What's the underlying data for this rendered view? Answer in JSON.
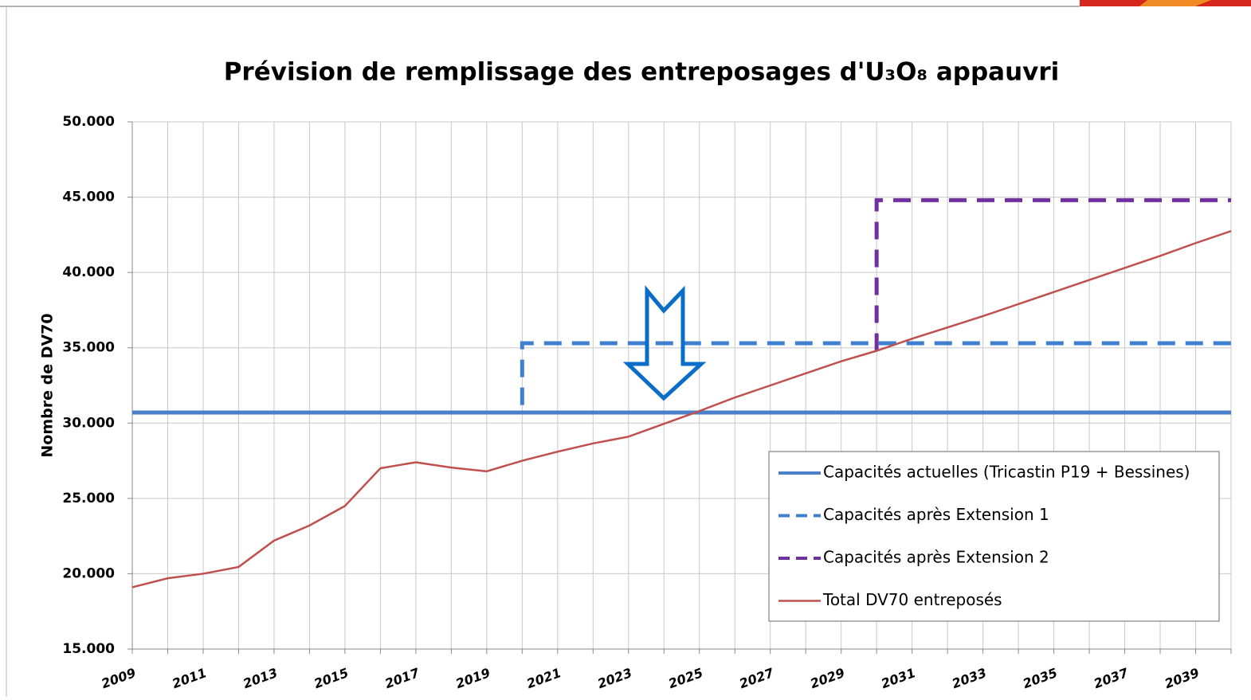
{
  "chart_data": {
    "type": "line",
    "title": "Prévision de remplissage des entreposages d'U₃O₈ appauvri",
    "ylabel": "Nombre de DV70",
    "xlim": [
      2009,
      2040
    ],
    "xticks": [
      2009,
      2011,
      2013,
      2015,
      2017,
      2019,
      2021,
      2023,
      2025,
      2027,
      2029,
      2031,
      2033,
      2035,
      2037,
      2039
    ],
    "xminorticks": [
      2010,
      2012,
      2014,
      2016,
      2018,
      2020,
      2022,
      2024,
      2026,
      2028,
      2030,
      2032,
      2034,
      2036,
      2038,
      2040
    ],
    "ylim": [
      15000,
      50000
    ],
    "yticks": [
      {
        "value": 15000,
        "label": "15.000"
      },
      {
        "value": 20000,
        "label": "20.000"
      },
      {
        "value": 25000,
        "label": "25.000"
      },
      {
        "value": 30000,
        "label": "30.000"
      },
      {
        "value": 35000,
        "label": "35.000"
      },
      {
        "value": 40000,
        "label": "40.000"
      },
      {
        "value": 45000,
        "label": "45.000"
      },
      {
        "value": 50000,
        "label": "50.000"
      }
    ],
    "grid": true,
    "legend": "lower right",
    "series": [
      {
        "name": "Capacités actuelles (Tricastin P19 + Bessines)",
        "color": "#4a7fc9",
        "dash": false,
        "x": [
          2009,
          2040
        ],
        "values": [
          30700,
          30700
        ]
      },
      {
        "name": "Capacités après Extension 1",
        "color": "#3f7fcf",
        "dash": true,
        "x": [
          2020,
          2020,
          2040
        ],
        "values": [
          31200,
          35300,
          35300
        ]
      },
      {
        "name": "Capacités après Extension 2",
        "color": "#7030a0",
        "dash": true,
        "x": [
          2030,
          2030,
          2040
        ],
        "values": [
          34800,
          44800,
          44800
        ]
      },
      {
        "name": "Total DV70 entreposés",
        "color": "#c0504d",
        "dash": false,
        "x": [
          2009,
          2010,
          2011,
          2012,
          2013,
          2014,
          2015,
          2016,
          2017,
          2018,
          2019,
          2020,
          2021,
          2022,
          2023,
          2024,
          2025,
          2026,
          2027,
          2028,
          2029,
          2030,
          2031,
          2032,
          2033,
          2034,
          2035,
          2036,
          2037,
          2038,
          2039,
          2040
        ],
        "values": [
          19100,
          19700,
          20000,
          20450,
          22200,
          23200,
          24500,
          27000,
          27400,
          27050,
          26800,
          27500,
          28100,
          28650,
          29100,
          29950,
          30800,
          31700,
          32500,
          33300,
          34100,
          34800,
          35600,
          36350,
          37100,
          37900,
          38700,
          39500,
          40300,
          41100,
          41950,
          42750
        ]
      }
    ]
  }
}
